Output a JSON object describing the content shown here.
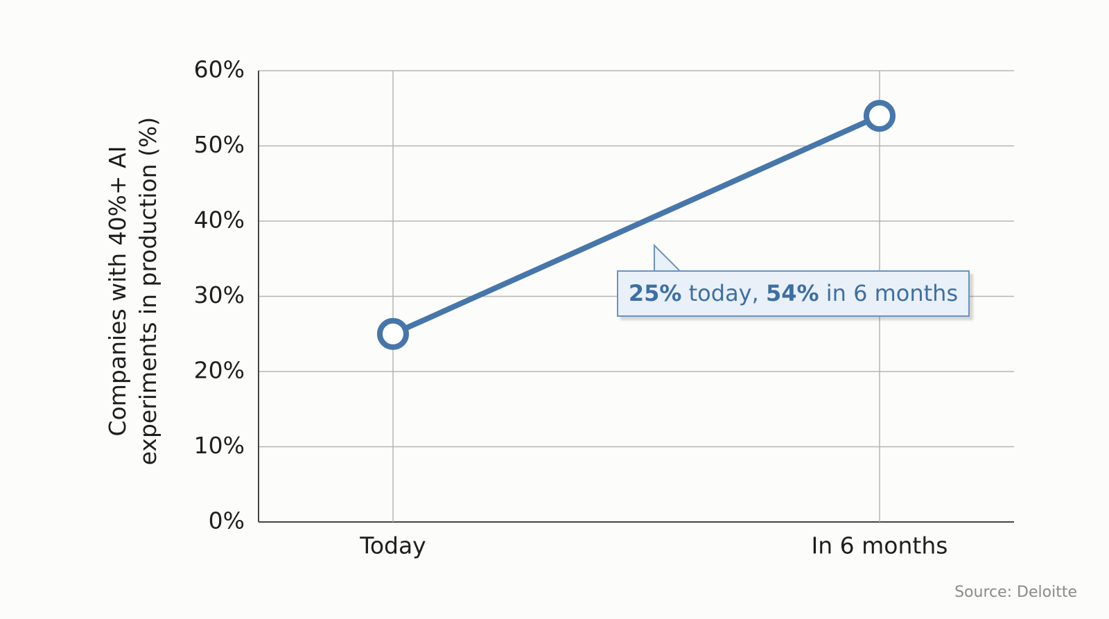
{
  "chart_data": {
    "type": "line",
    "y_label": "Companies with 40%+ AI experiments in production (%)",
    "categories": [
      "Today",
      "In 6 months"
    ],
    "series": [
      {
        "name": "Companies with 40%+ AI experiments in production",
        "color": "#4676aa",
        "values": [
          25,
          54
        ]
      }
    ],
    "ylim": [
      0,
      60
    ],
    "yticks": [
      {
        "value": 0,
        "label": "0%"
      },
      {
        "value": 10,
        "label": "10%"
      },
      {
        "value": 20,
        "label": "20%"
      },
      {
        "value": 30,
        "label": "30%"
      },
      {
        "value": 40,
        "label": "40%"
      },
      {
        "value": 50,
        "label": "50%"
      },
      {
        "value": 60,
        "label": "60%"
      }
    ],
    "grid": true,
    "annotation": [
      "25%",
      "today,",
      "54%",
      "in 6 months"
    ],
    "source": "Source: Deloitte"
  }
}
